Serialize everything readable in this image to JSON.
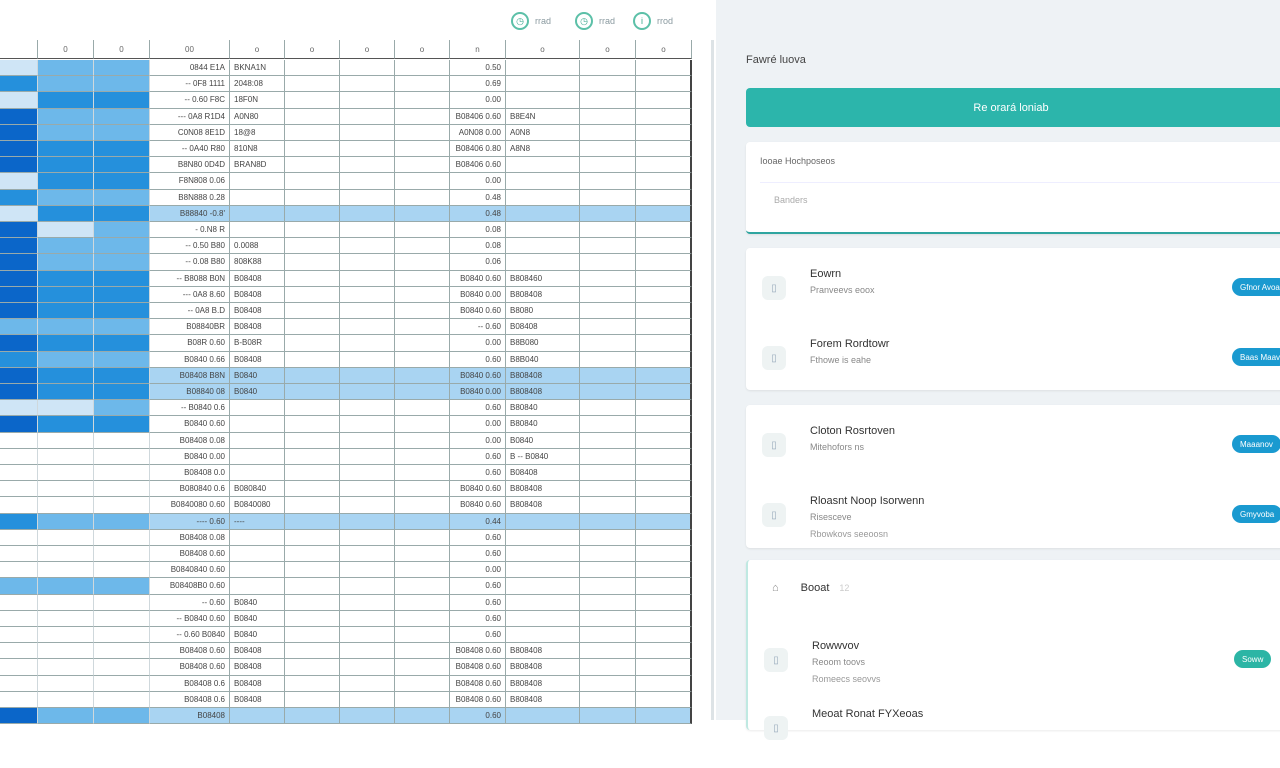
{
  "toolbar": [
    {
      "icon": "clock-icon",
      "label": "rrad"
    },
    {
      "icon": "clock-icon",
      "label": "rrad"
    },
    {
      "icon": "info-icon",
      "label": "rrod"
    }
  ],
  "sheet": {
    "headers": [
      "",
      "0",
      "0",
      "00",
      "o",
      "o",
      "o",
      "o",
      "n",
      "o",
      "o",
      "o"
    ],
    "shade_colors": [
      "#ffffff",
      "#cfe5f6",
      "#6db8ea",
      "#2590dc",
      "#0b66c9"
    ],
    "highlight_color": "#a9d4f2",
    "rows": [
      {
        "s": [
          1,
          2,
          2
        ],
        "c": "0844 E1A",
        "d": "BKNA1N",
        "i": "0.50",
        "j": ""
      },
      {
        "s": [
          3,
          2,
          2
        ],
        "c": "-- 0F8 1111",
        "d": "2048:08",
        "i": "0.69",
        "j": ""
      },
      {
        "s": [
          1,
          3,
          3
        ],
        "c": "-- 0.60 F8C",
        "d": "18F0N",
        "i": "0.00",
        "j": ""
      },
      {
        "s": [
          4,
          2,
          2
        ],
        "c": "--- 0A8 R1D4",
        "d": "A0N80",
        "i": "B08406 0.60",
        "j": "B8E4N"
      },
      {
        "s": [
          4,
          2,
          2
        ],
        "c": "C0N08 8E1D",
        "d": "18@8",
        "i": "A0N08 0.00",
        "j": "A0N8"
      },
      {
        "s": [
          4,
          3,
          3
        ],
        "c": "-- 0A40 R80",
        "d": "810N8",
        "i": "B08406 0.80",
        "j": "A8N8"
      },
      {
        "s": [
          4,
          3,
          3
        ],
        "c": "B8N80 0D4D",
        "d": "BRAN8D",
        "i": "B08406 0.60",
        "j": ""
      },
      {
        "s": [
          1,
          3,
          3
        ],
        "c": "F8N808 0.06",
        "d": "",
        "i": "0.00",
        "j": ""
      },
      {
        "s": [
          3,
          2,
          2
        ],
        "c": "B8N888 0.28",
        "d": "",
        "i": "0.48",
        "j": ""
      },
      {
        "s": [
          1,
          3,
          3
        ],
        "c": "B88840 -0.8'",
        "d": "",
        "i": "0.48",
        "j": "",
        "h": true
      },
      {
        "s": [
          4,
          1,
          2
        ],
        "c": "- 0.N8 R",
        "d": "",
        "i": "0.08",
        "j": ""
      },
      {
        "s": [
          4,
          2,
          2
        ],
        "c": "-- 0.50 B80",
        "d": "0.0088",
        "i": "0.08",
        "j": ""
      },
      {
        "s": [
          4,
          2,
          2
        ],
        "c": "-- 0.08 B80",
        "d": "808K88",
        "i": "0.06",
        "j": ""
      },
      {
        "s": [
          4,
          3,
          3
        ],
        "c": "-- B8088 B0N",
        "d": "B08408",
        "i": "B0840 0.60",
        "j": "B808460"
      },
      {
        "s": [
          4,
          3,
          3
        ],
        "c": "--- 0A8 8.60",
        "d": "B08408",
        "i": "B0840 0.00",
        "j": "B808408"
      },
      {
        "s": [
          4,
          3,
          3
        ],
        "c": "-- 0A8 B.D",
        "d": "B08408",
        "i": "B0840 0.60",
        "j": "B8080"
      },
      {
        "s": [
          2,
          2,
          2
        ],
        "c": "B08840BR",
        "d": "B08408",
        "i": "-- 0.60",
        "j": "B08408"
      },
      {
        "s": [
          4,
          3,
          3
        ],
        "c": "B08R 0.60",
        "d": "B-B08R",
        "i": "0.00",
        "j": "B8B080"
      },
      {
        "s": [
          3,
          2,
          2
        ],
        "c": "B0840 0.66",
        "d": "B08408",
        "i": "0.60",
        "j": "B8B040"
      },
      {
        "s": [
          4,
          3,
          3
        ],
        "c": "B08408 B8N",
        "d": "B0840",
        "i": "B0840 0.60",
        "j": "B808408",
        "h": true
      },
      {
        "s": [
          4,
          3,
          3
        ],
        "c": "B08840 08",
        "d": "B0840",
        "i": "B0840 0.00",
        "j": "B808408",
        "h": true
      },
      {
        "s": [
          1,
          1,
          2
        ],
        "c": "-- B0840 0.6",
        "d": "",
        "i": "0.60",
        "j": "B80840"
      },
      {
        "s": [
          4,
          3,
          3
        ],
        "c": "B0840 0.60",
        "d": "",
        "i": "0.00",
        "j": "B80840"
      },
      {
        "s": [
          0,
          0,
          0
        ],
        "c": "B08408 0.08",
        "d": "",
        "i": "0.00",
        "j": "B0840"
      },
      {
        "s": [
          0,
          0,
          0
        ],
        "c": "B0840 0.00",
        "d": "",
        "i": "0.60",
        "j": "B -- B0840"
      },
      {
        "s": [
          0,
          0,
          0
        ],
        "c": "B08408 0.0",
        "d": "",
        "i": "0.60",
        "j": "B08408"
      },
      {
        "s": [
          0,
          0,
          0
        ],
        "c": "B080840 0.6",
        "d": "B080840",
        "i": "B0840 0.60",
        "j": "B808408"
      },
      {
        "s": [
          0,
          0,
          0
        ],
        "c": "B0840080 0.60",
        "d": "B0840080",
        "i": "B0840 0.60",
        "j": "B808408"
      },
      {
        "s": [
          3,
          2,
          2
        ],
        "c": "---- 0.60",
        "d": "----",
        "i": "0.44",
        "j": "",
        "h": true
      },
      {
        "s": [
          0,
          0,
          0
        ],
        "c": "B08408 0.08",
        "d": "",
        "i": "0.60",
        "j": ""
      },
      {
        "s": [
          0,
          0,
          0
        ],
        "c": "B08408 0.60",
        "d": "",
        "i": "0.60",
        "j": ""
      },
      {
        "s": [
          0,
          0,
          0
        ],
        "c": "B0840840 0.60",
        "d": "",
        "i": "0.00",
        "j": ""
      },
      {
        "s": [
          2,
          2,
          2
        ],
        "c": "B08408B0 0.60",
        "d": "",
        "i": "0.60",
        "j": ""
      },
      {
        "s": [
          0,
          0,
          0
        ],
        "c": "-- 0.60",
        "d": "B0840",
        "i": "0.60",
        "j": ""
      },
      {
        "s": [
          0,
          0,
          0
        ],
        "c": "-- B0840 0.60",
        "d": "B0840",
        "i": "0.60",
        "j": ""
      },
      {
        "s": [
          0,
          0,
          0
        ],
        "c": "-- 0.60 B0840",
        "d": "B0840",
        "i": "0.60",
        "j": ""
      },
      {
        "s": [
          0,
          0,
          0
        ],
        "c": "B08408 0.60",
        "d": "B08408",
        "i": "B08408 0.60",
        "j": "B808408"
      },
      {
        "s": [
          0,
          0,
          0
        ],
        "c": "B08408 0.60",
        "d": "B08408",
        "i": "B08408 0.60",
        "j": "B808408"
      },
      {
        "s": [
          0,
          0,
          0
        ],
        "c": "B08408 0.6",
        "d": "B08408",
        "i": "B08408 0.60",
        "j": "B808408"
      },
      {
        "s": [
          0,
          0,
          0
        ],
        "c": "B08408 0.6",
        "d": "B08408",
        "i": "B08408 0.60",
        "j": "B808408"
      },
      {
        "s": [
          4,
          2,
          2
        ],
        "c": "B08408",
        "d": "",
        "i": "0.60",
        "j": "",
        "h": true
      }
    ]
  },
  "panel": {
    "title": "Fawré luova",
    "primary_button": "Re orará loniab",
    "search": {
      "label": "Iooae Hochposeos",
      "placeholder": "Banders"
    },
    "items": [
      {
        "title": "Eowrn",
        "sub": "Pranveevs eoox",
        "sub2": "",
        "badge": "Gfnor Avoa",
        "badge_color": "#1a9ad0"
      },
      {
        "title": "Forem Rordtowr",
        "sub": "Fthowe is eahe",
        "sub2": "",
        "badge": "Baas Maav",
        "badge_color": "#1a9ad0"
      },
      {
        "title": "Cloton Rosrtoven",
        "sub": "Mitehofors ns",
        "sub2": "",
        "badge": "Maaanov",
        "badge_color": "#1a9ad0"
      },
      {
        "title": "Rloasnt Noop Isorwenn",
        "sub": "Risesceve",
        "sub2": "Rbowkovs seeoosn",
        "badge": "Gmyvoba",
        "badge_color": "#1a9ad0"
      }
    ],
    "section": {
      "icon": "bell-icon",
      "title": "Booat",
      "count": "12"
    },
    "section_items": [
      {
        "title": "Rowwvov",
        "sub": "Reoom toovs",
        "sub2": "Romeecs seovvs",
        "badge": "Soww",
        "badge_color": "#2cb5a5"
      },
      {
        "title": "Meoat Ronat FYXeoas",
        "sub": "",
        "sub2": "",
        "badge": "",
        "badge_color": ""
      }
    ]
  }
}
